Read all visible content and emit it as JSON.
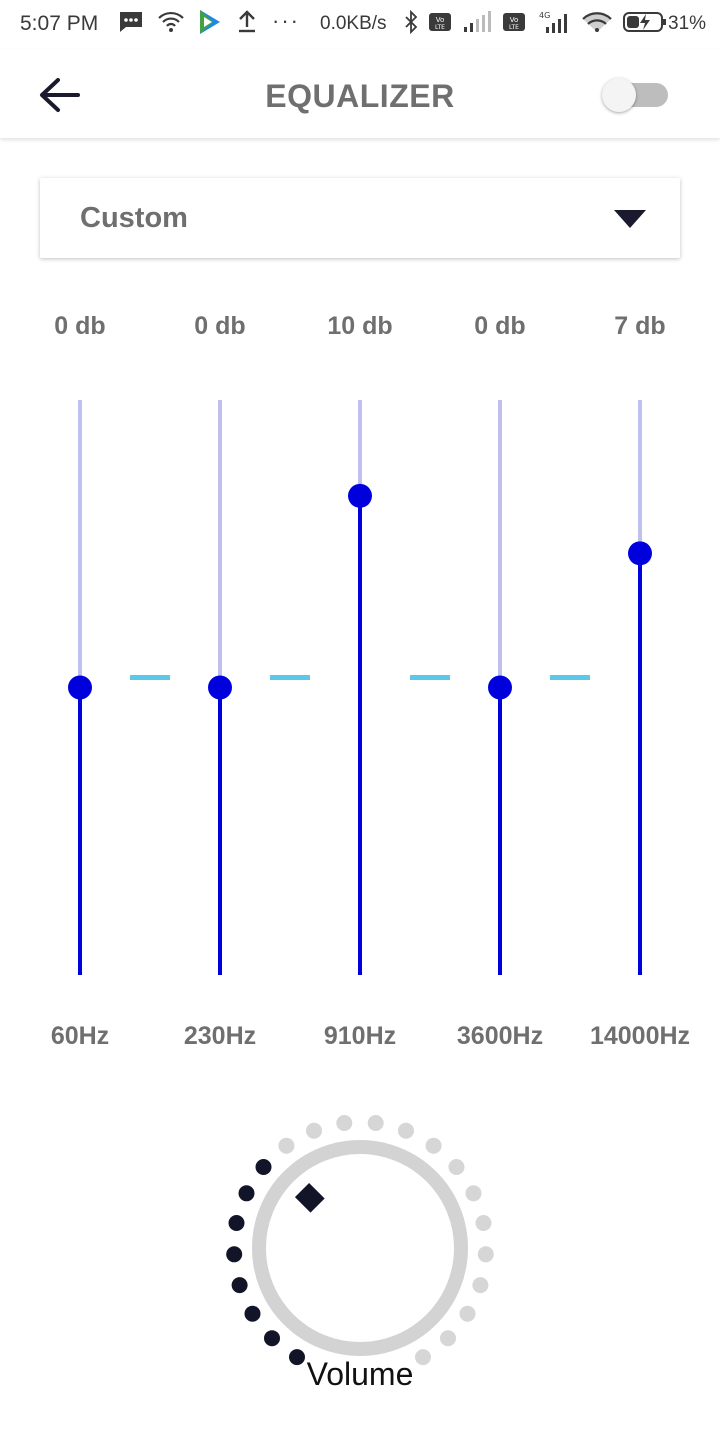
{
  "status_bar": {
    "time": "5:07 PM",
    "dots": "···",
    "network_speed": "0.0KB/s",
    "battery_percent": "31%",
    "icons": [
      "message-icon",
      "wifi-icon",
      "play-store-icon",
      "upload-icon",
      "bluetooth-icon",
      "volte-icon",
      "signal-icon",
      "volte-icon",
      "signal-4g-icon",
      "wifi-icon",
      "battery-charging-icon"
    ],
    "net_type": "4G"
  },
  "appbar": {
    "title": "EQUALIZER",
    "toggle_on": false
  },
  "preset": {
    "selected": "Custom"
  },
  "equalizer": {
    "range_db": [
      -15,
      15
    ],
    "bands": [
      {
        "freq": "60Hz",
        "db_label": "0 db",
        "value": 0
      },
      {
        "freq": "230Hz",
        "db_label": "0 db",
        "value": 0
      },
      {
        "freq": "910Hz",
        "db_label": "10 db",
        "value": 10
      },
      {
        "freq": "3600Hz",
        "db_label": "0 db",
        "value": 0
      },
      {
        "freq": "14000Hz",
        "db_label": "7 db",
        "value": 7
      }
    ],
    "colors": {
      "active": "#0000dd",
      "inactive": "#c0c0ef",
      "connector": "#5ac8e8"
    }
  },
  "volume": {
    "label": "Volume",
    "level_fraction": 0.35,
    "dot_active_color": "#121428",
    "dot_inactive_color": "#d6d6d6"
  }
}
